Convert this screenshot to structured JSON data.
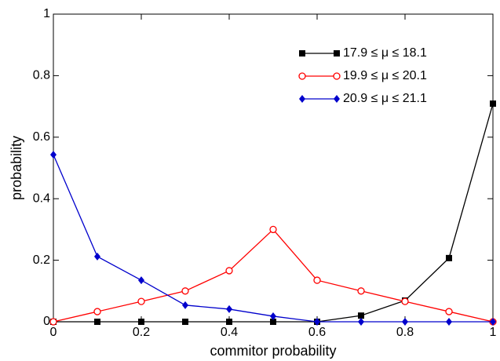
{
  "chart_data": {
    "type": "line",
    "x_label": "commitor probability",
    "y_label": "probability",
    "x": [
      0,
      0.1,
      0.2,
      0.3,
      0.4,
      0.5,
      0.6,
      0.7,
      0.8,
      0.9,
      1
    ],
    "series": [
      {
        "name": "17.9 ≤ μ ≤ 18.1",
        "color": "#000000",
        "marker": "square",
        "values": [
          0,
          0,
          0,
          0,
          0,
          0,
          0,
          0.02,
          0.069,
          0.207,
          0.709
        ]
      },
      {
        "name": "19.9 ≤ μ ≤ 20.1",
        "color": "#ff0000",
        "marker": "circle-open",
        "values": [
          0,
          0.033,
          0.066,
          0.1,
          0.166,
          0.3,
          0.135,
          0.1,
          0.066,
          0.033,
          0
        ]
      },
      {
        "name": "20.9 ≤ μ ≤ 21.1",
        "color": "#0000cc",
        "marker": "diamond",
        "values": [
          0.543,
          0.212,
          0.135,
          0.054,
          0.041,
          0.018,
          0,
          0,
          0,
          0,
          0
        ]
      }
    ],
    "xlim": [
      0,
      1
    ],
    "xticks": [
      0,
      0.2,
      0.4,
      0.6,
      0.8,
      1
    ],
    "ylim": [
      0,
      1
    ],
    "yticks": [
      0,
      0.2,
      0.4,
      0.6,
      0.8,
      1
    ],
    "legend": "upper-right"
  }
}
